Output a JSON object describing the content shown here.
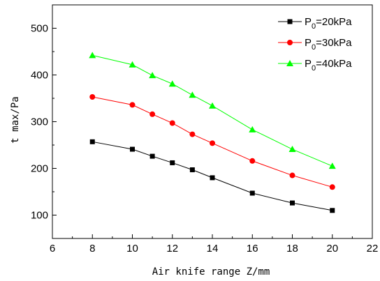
{
  "chart_data": {
    "type": "line",
    "xlabel": "Air knife range Z/mm",
    "ylabel": "t max/Pa",
    "xlim": [
      6,
      22
    ],
    "ylim": [
      50,
      550
    ],
    "xticks": [
      6,
      8,
      10,
      12,
      14,
      16,
      18,
      20,
      22
    ],
    "yticks": [
      100,
      200,
      300,
      400,
      500
    ],
    "grid": false,
    "legend_position": "top-right",
    "x": [
      8,
      10,
      11,
      12,
      13,
      14,
      16,
      18,
      20
    ],
    "series": [
      {
        "name_main": "P",
        "name_sub": "0",
        "name_rest": "=20kPa",
        "color": "#000000",
        "marker": "square",
        "values": [
          257,
          241,
          226,
          212,
          197,
          180,
          147,
          126,
          110
        ]
      },
      {
        "name_main": "P",
        "name_sub": "0",
        "name_rest": "=30kPa",
        "color": "#ff0000",
        "marker": "circle",
        "values": [
          353,
          336,
          316,
          297,
          273,
          254,
          216,
          185,
          160
        ]
      },
      {
        "name_main": "P",
        "name_sub": "0",
        "name_rest": "=40kPa",
        "color": "#00ff00",
        "marker": "triangle",
        "values": [
          442,
          422,
          399,
          381,
          357,
          334,
          283,
          241,
          205
        ]
      }
    ]
  }
}
